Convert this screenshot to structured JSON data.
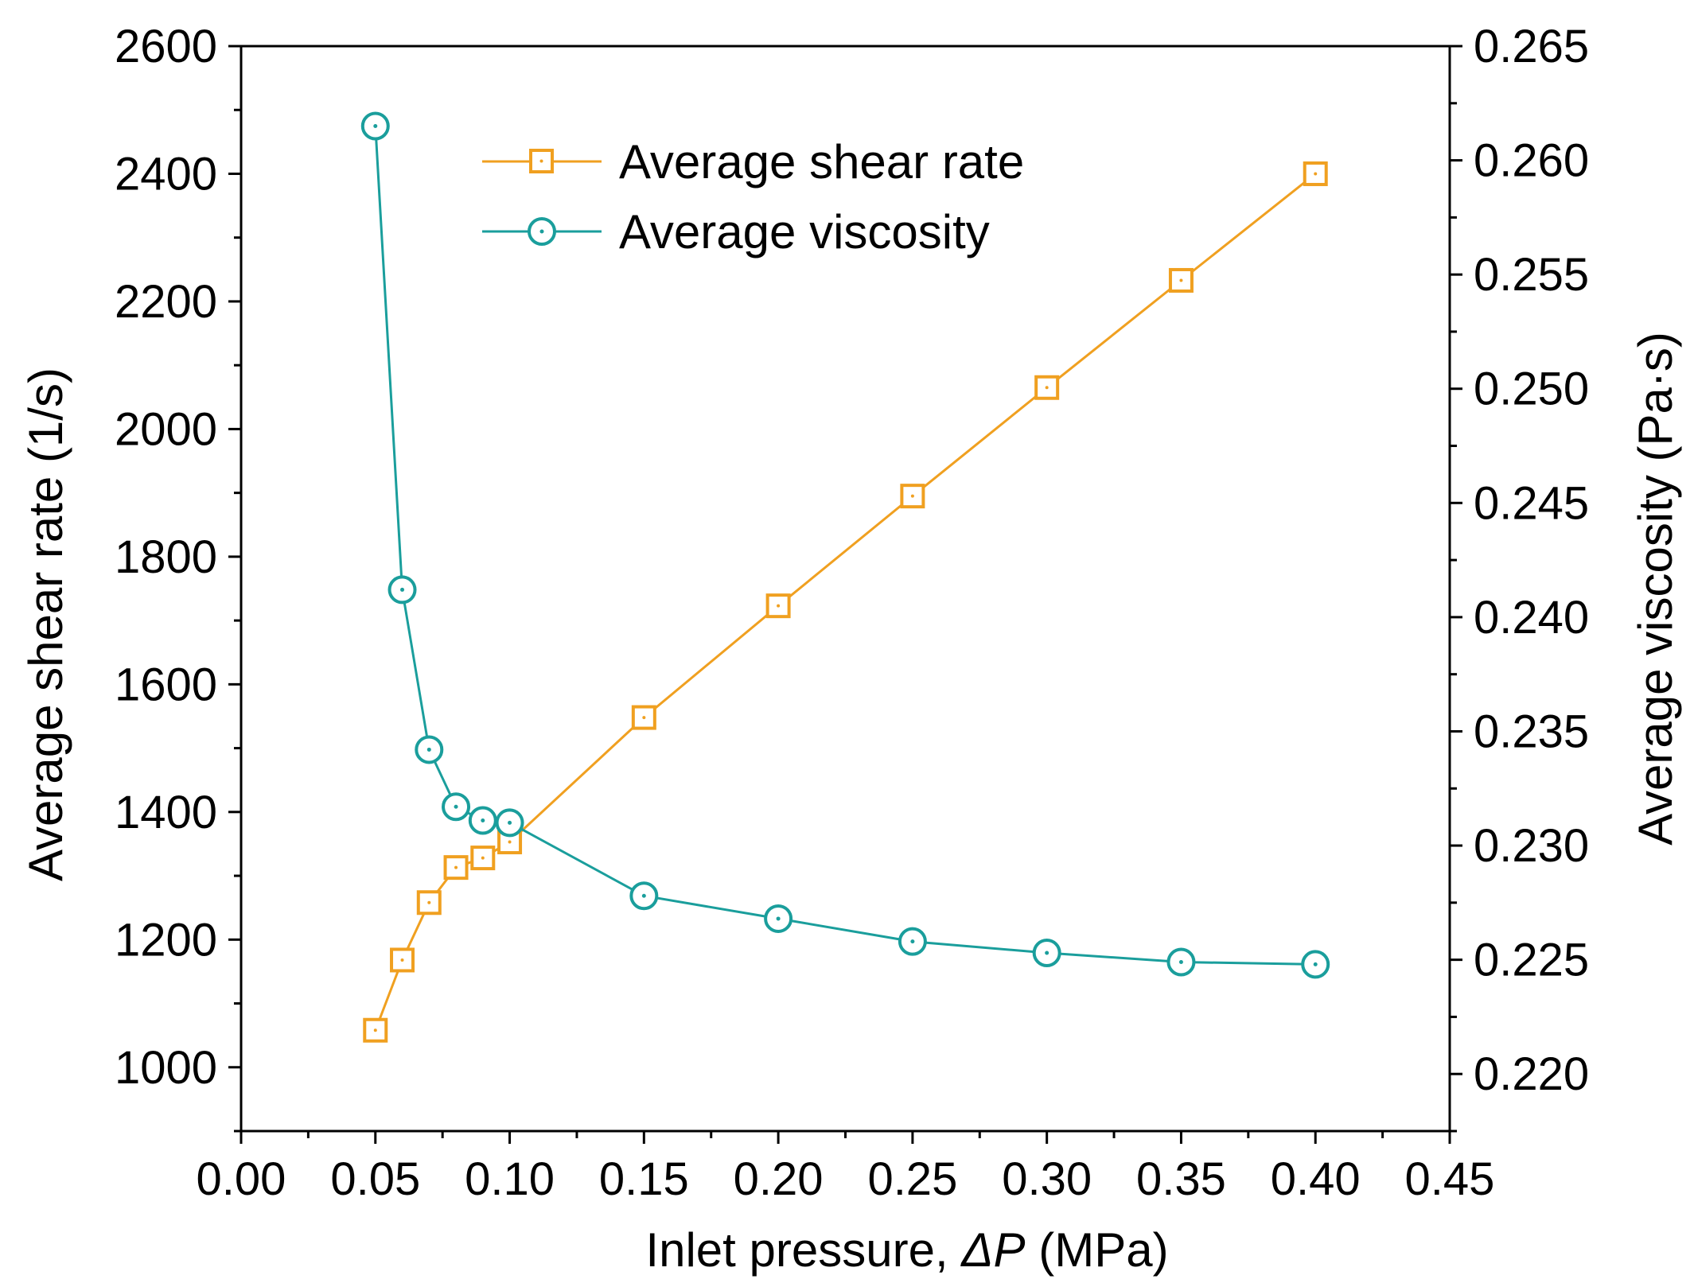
{
  "chart_data": {
    "type": "line",
    "title": "",
    "xlabel_prefix": "Inlet pressure, ",
    "xlabel_symbol": "ΔP",
    "xlabel_suffix": " (MPa)",
    "ylabel": "Average shear rate (1/s)",
    "y2label": "Average viscosity (Pa·s)",
    "xlim": [
      0.0,
      0.45
    ],
    "ylim": [
      900,
      2600
    ],
    "y2lim": [
      0.2175,
      0.265
    ],
    "x_ticks": [
      "0.00",
      "0.05",
      "0.10",
      "0.15",
      "0.20",
      "0.25",
      "0.30",
      "0.35",
      "0.40",
      "0.45"
    ],
    "y_ticks": [
      "1000",
      "1200",
      "1400",
      "1600",
      "1800",
      "2000",
      "2200",
      "2400",
      "2600"
    ],
    "y2_ticks": [
      "0.220",
      "0.225",
      "0.230",
      "0.235",
      "0.240",
      "0.245",
      "0.250",
      "0.255",
      "0.260",
      "0.265"
    ],
    "legend_position": "top-center",
    "grid": false,
    "x": [
      0.05,
      0.06,
      0.07,
      0.08,
      0.09,
      0.1,
      0.15,
      0.2,
      0.25,
      0.3,
      0.35,
      0.4
    ],
    "series": [
      {
        "name": "Average shear rate",
        "axis": "left",
        "marker": "square",
        "color": "#F0A020",
        "values": [
          1058,
          1168,
          1258,
          1313,
          1328,
          1353,
          1548,
          1723,
          1895,
          2065,
          2233,
          2400
        ]
      },
      {
        "name": "Average viscosity",
        "axis": "right",
        "marker": "circle",
        "color": "#1A9E9C",
        "values": [
          0.2615,
          0.2412,
          0.2342,
          0.2317,
          0.2311,
          0.231,
          0.2278,
          0.2268,
          0.2258,
          0.2253,
          0.2249,
          0.2248
        ]
      }
    ]
  }
}
